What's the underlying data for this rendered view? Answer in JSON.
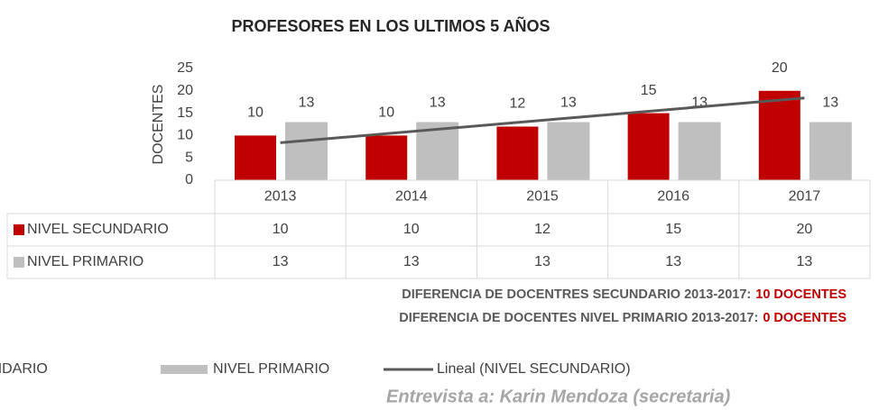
{
  "chart_data": {
    "type": "bar",
    "title": "PROFESORES EN LOS ULTIMOS 5 AÑOS",
    "y_axis_label": "DOCENTES",
    "categories": [
      "2013",
      "2014",
      "2015",
      "2016",
      "2017"
    ],
    "series": [
      {
        "name": "NIVEL SECUNDARIO",
        "color": "#c00000",
        "values": [
          10,
          10,
          12,
          15,
          20
        ]
      },
      {
        "name": "NIVEL PRIMARIO",
        "color": "#bfbfbf",
        "values": [
          13,
          13,
          13,
          13,
          13
        ]
      }
    ],
    "trendline": {
      "name": "Lineal (NIVEL SECUNDARIO)",
      "series": 0,
      "color": "#595959"
    },
    "ylim": [
      0,
      25
    ],
    "yticks": [
      0,
      5,
      10,
      15,
      20,
      25
    ],
    "grid": false,
    "legend": "bottom",
    "data_table": true,
    "annotations": [
      {
        "text": "DIFERENCIA DE DOCENTRES SECUNDARIO 2013-2017:",
        "highlight": "10 DOCENTES"
      },
      {
        "text": "DIFERENCIA DE DOCENTES NIVEL PRIMARIO 2013-2017:",
        "highlight": "0 DOCENTES"
      }
    ],
    "source": "Entrevista a: Karin Mendoza (secretaria)"
  }
}
